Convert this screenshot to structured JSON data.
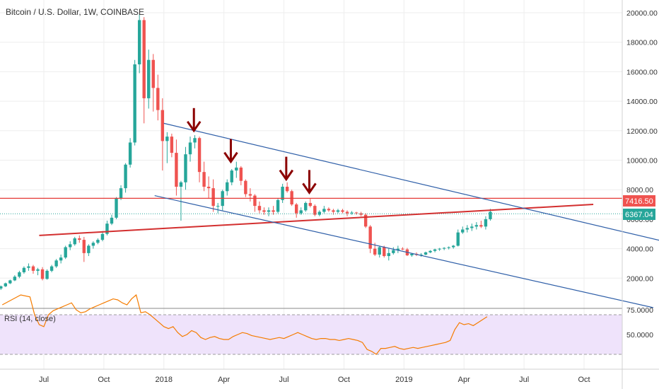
{
  "header": {
    "title": "Bitcoin / U.S. Dollar, 1W, COINBASE"
  },
  "colors": {
    "up": "#26a69a",
    "down": "#ef5350",
    "support_line": "#d32f2f",
    "resistance_line": "#e53935",
    "channel_line": "#2f5fa8",
    "arrow": "#8b0000",
    "rsi_line": "#f57c00",
    "rsi_band": "#efe3fb",
    "current_price_line": "#26a69a",
    "resistance_label_bg": "#ef5350",
    "current_label_bg": "#26a69a"
  },
  "price_axis": {
    "ticks": [
      "20000.00",
      "18000.00",
      "16000.00",
      "14000.00",
      "12000.00",
      "10000.00",
      "8000.00",
      "6000.00",
      "4000.00",
      "2000.00"
    ],
    "tick_values": [
      20000,
      18000,
      16000,
      14000,
      12000,
      10000,
      8000,
      6000,
      4000,
      2000
    ]
  },
  "labels": {
    "resistance": "7416.50",
    "current": "6367.04"
  },
  "time_axis": {
    "labels": [
      "Jul",
      "Oct",
      "2018",
      "Apr",
      "Jul",
      "Oct",
      "2019",
      "Apr",
      "Jul",
      "Oct"
    ],
    "weeks": [
      0,
      13,
      26,
      39,
      52,
      65,
      78,
      91,
      104,
      117
    ]
  },
  "rsi": {
    "title": "RSI (14, close)",
    "ticks": [
      "75.0000",
      "50.0000"
    ],
    "tick_values": [
      75,
      50
    ]
  },
  "chart_data": [
    {
      "type": "candlestick",
      "title": "Bitcoin / U.S. Dollar, 1W, COINBASE",
      "ylim": [
        0,
        20900
      ],
      "x_unit": "weeks from Jul 2017",
      "candles": [
        [
          -9.3,
          1300,
          1500,
          1200,
          1450
        ],
        [
          -8.3,
          1450,
          1700,
          1400,
          1650
        ],
        [
          -7.3,
          1650,
          1900,
          1600,
          1850
        ],
        [
          -6.3,
          1850,
          2200,
          1800,
          2100
        ],
        [
          -5.3,
          2100,
          2500,
          2000,
          2400
        ],
        [
          -4.3,
          2400,
          2800,
          2300,
          2700
        ],
        [
          -3.3,
          2700,
          3000,
          2500,
          2800
        ],
        [
          -2.3,
          2800,
          2900,
          2300,
          2500
        ],
        [
          -1.3,
          2500,
          2700,
          2200,
          2600
        ],
        [
          -0.3,
          2600,
          2750,
          1850,
          1950
        ],
        [
          0.7,
          1950,
          2600,
          1900,
          2500
        ],
        [
          1.7,
          2500,
          2900,
          2400,
          2800
        ],
        [
          2.7,
          2800,
          3300,
          2700,
          3200
        ],
        [
          3.7,
          3200,
          3600,
          3000,
          3400
        ],
        [
          4.7,
          3400,
          4200,
          3300,
          4100
        ],
        [
          5.7,
          4100,
          4500,
          3900,
          4300
        ],
        [
          6.7,
          4300,
          4800,
          4200,
          4700
        ],
        [
          7.7,
          4700,
          4900,
          4400,
          4600
        ],
        [
          8.7,
          4600,
          4800,
          3100,
          3700
        ],
        [
          9.7,
          3700,
          4300,
          3500,
          4200
        ],
        [
          10.7,
          4200,
          4500,
          4000,
          4400
        ],
        [
          11.7,
          4400,
          4700,
          4300,
          4600
        ],
        [
          12.7,
          4600,
          5200,
          4500,
          5000
        ],
        [
          13.7,
          5000,
          5900,
          4900,
          5700
        ],
        [
          14.7,
          5700,
          6300,
          5600,
          6100
        ],
        [
          15.7,
          6100,
          7500,
          6000,
          7400
        ],
        [
          16.7,
          7400,
          8300,
          7300,
          8100
        ],
        [
          17.7,
          8100,
          9800,
          7800,
          9700
        ],
        [
          18.7,
          9700,
          11500,
          9500,
          11200
        ],
        [
          19.7,
          11200,
          16800,
          11000,
          16500
        ],
        [
          20.7,
          16500,
          19900,
          15900,
          19500
        ],
        [
          21.7,
          19500,
          19700,
          12500,
          14200
        ],
        [
          22.7,
          14200,
          17500,
          13500,
          16800
        ],
        [
          23.7,
          16800,
          17200,
          13300,
          14900
        ],
        [
          24.7,
          14900,
          15800,
          12700,
          13400
        ],
        [
          25.7,
          13400,
          14200,
          9300,
          11300
        ],
        [
          26.7,
          11300,
          11900,
          9800,
          11600
        ],
        [
          27.7,
          11600,
          11800,
          10200,
          10500
        ],
        [
          28.7,
          10500,
          11400,
          7600,
          8200
        ],
        [
          29.7,
          8200,
          8600,
          5900,
          8500
        ],
        [
          30.7,
          8500,
          10900,
          8000,
          10400
        ],
        [
          31.7,
          10400,
          11600,
          9900,
          11200
        ],
        [
          32.7,
          11200,
          11700,
          10800,
          11500
        ],
        [
          33.7,
          11500,
          11600,
          8500,
          9200
        ],
        [
          34.7,
          9200,
          9900,
          7900,
          8200
        ],
        [
          35.7,
          8200,
          8900,
          7400,
          8100
        ],
        [
          36.7,
          8100,
          8700,
          6500,
          6900
        ],
        [
          37.7,
          6900,
          7100,
          6400,
          6900
        ],
        [
          38.7,
          6900,
          8000,
          6600,
          7900
        ],
        [
          39.7,
          7900,
          8700,
          7600,
          8500
        ],
        [
          40.7,
          8500,
          9400,
          8300,
          9300
        ],
        [
          41.7,
          9300,
          9900,
          8800,
          9500
        ],
        [
          42.7,
          9500,
          9600,
          8300,
          8600
        ],
        [
          43.7,
          8600,
          8700,
          7500,
          7700
        ],
        [
          44.7,
          7700,
          8100,
          7200,
          7600
        ],
        [
          45.7,
          7600,
          7700,
          6500,
          6900
        ],
        [
          46.7,
          6900,
          7200,
          6400,
          6600
        ],
        [
          47.7,
          6600,
          6800,
          6300,
          6500
        ],
        [
          48.7,
          6500,
          6800,
          6200,
          6600
        ],
        [
          49.7,
          6600,
          6900,
          6300,
          6500
        ],
        [
          50.7,
          6500,
          7400,
          6400,
          7300
        ],
        [
          51.7,
          7300,
          8400,
          7100,
          8200
        ],
        [
          52.7,
          8200,
          8500,
          7800,
          7900
        ],
        [
          53.7,
          7900,
          8000,
          6900,
          7000
        ],
        [
          54.7,
          7000,
          7100,
          6100,
          6400
        ],
        [
          55.7,
          6400,
          6800,
          6300,
          6600
        ],
        [
          56.7,
          6600,
          7200,
          6500,
          7100
        ],
        [
          57.7,
          7100,
          7400,
          6800,
          6900
        ],
        [
          58.7,
          6900,
          7000,
          6200,
          6300
        ],
        [
          59.7,
          6300,
          6600,
          6200,
          6500
        ],
        [
          60.7,
          6500,
          6900,
          6400,
          6700
        ],
        [
          61.7,
          6700,
          6800,
          6500,
          6600
        ],
        [
          62.7,
          6600,
          6700,
          6300,
          6500
        ],
        [
          63.7,
          6500,
          6700,
          6400,
          6600
        ],
        [
          64.7,
          6600,
          6700,
          6400,
          6500
        ],
        [
          65.7,
          6500,
          6600,
          6200,
          6400
        ],
        [
          66.7,
          6400,
          6550,
          6300,
          6450
        ],
        [
          67.7,
          6450,
          6500,
          6300,
          6400
        ],
        [
          68.7,
          6400,
          6500,
          6200,
          6300
        ],
        [
          69.7,
          6300,
          6400,
          5400,
          5500
        ],
        [
          70.7,
          5500,
          5600,
          3700,
          4000
        ],
        [
          71.7,
          4000,
          4400,
          3500,
          3600
        ],
        [
          72.7,
          3600,
          4200,
          3400,
          4100
        ],
        [
          73.7,
          4100,
          4200,
          3400,
          3500
        ],
        [
          74.7,
          3500,
          4000,
          3200,
          3700
        ],
        [
          75.7,
          3700,
          4100,
          3600,
          3900
        ],
        [
          76.7,
          3900,
          4200,
          3700,
          4000
        ],
        [
          77.7,
          4000,
          4100,
          3900,
          3950
        ],
        [
          78.7,
          3950,
          4050,
          3500,
          3550
        ],
        [
          79.7,
          3550,
          3700,
          3450,
          3650
        ],
        [
          80.7,
          3650,
          3750,
          3500,
          3580
        ],
        [
          81.7,
          3580,
          3700,
          3450,
          3600
        ],
        [
          82.7,
          3600,
          3800,
          3550,
          3750
        ],
        [
          83.7,
          3750,
          3900,
          3700,
          3850
        ],
        [
          84.7,
          3850,
          4000,
          3750,
          3950
        ],
        [
          85.7,
          3950,
          4050,
          3850,
          4000
        ],
        [
          86.7,
          4000,
          4100,
          3900,
          4050
        ],
        [
          87.7,
          4050,
          4150,
          3950,
          4100
        ],
        [
          88.7,
          4100,
          4250,
          4000,
          4200
        ],
        [
          89.7,
          4200,
          5300,
          4150,
          5100
        ],
        [
          90.7,
          5100,
          5500,
          5000,
          5300
        ],
        [
          91.7,
          5300,
          5600,
          5100,
          5400
        ],
        [
          92.7,
          5400,
          5700,
          5200,
          5500
        ],
        [
          93.7,
          5500,
          5800,
          5300,
          5600
        ],
        [
          94.7,
          5600,
          5900,
          5400,
          5500
        ],
        [
          95.7,
          5500,
          6200,
          5300,
          6000
        ],
        [
          96.7,
          6000,
          6700,
          5900,
          6500
        ]
      ],
      "lines": {
        "resistance": {
          "value": 7416.5
        },
        "current": {
          "value": 6367.04
        },
        "support_trend": {
          "points": [
            [
              -1,
              4900
            ],
            [
              119,
              7000
            ]
          ]
        },
        "channel_upper": {
          "points": [
            [
              26,
              12500
            ],
            [
              141,
              4000
            ]
          ]
        },
        "channel_lower": {
          "points": [
            [
              24,
              7600
            ],
            [
              132,
              0
            ]
          ]
        }
      },
      "arrows_at": [
        [
          32.5,
          12000
        ],
        [
          40.5,
          9900
        ],
        [
          52.5,
          8700
        ],
        [
          57.5,
          7800
        ]
      ]
    },
    {
      "type": "line",
      "title": "RSI (14, close)",
      "ylim": [
        25,
        95
      ],
      "bands": [
        [
          30,
          70
        ]
      ],
      "x": [
        -9,
        -7,
        -5,
        -3,
        -2,
        -1,
        0,
        1,
        2,
        3,
        4,
        5,
        6,
        7,
        8,
        9,
        10,
        11,
        12,
        13,
        14,
        15,
        16,
        17,
        18,
        19,
        20,
        21,
        22,
        23,
        24,
        25,
        26,
        27,
        28,
        29,
        30,
        31,
        32,
        33,
        34,
        35,
        36,
        37,
        38,
        39,
        40,
        41,
        42,
        43,
        44,
        45,
        46,
        47,
        48,
        49,
        50,
        51,
        52,
        53,
        54,
        55,
        56,
        57,
        58,
        59,
        60,
        61,
        62,
        63,
        64,
        65,
        66,
        67,
        68,
        69,
        70,
        71,
        72,
        73,
        74,
        75,
        76,
        77,
        78,
        79,
        80,
        81,
        82,
        83,
        84,
        85,
        86,
        87,
        88,
        89,
        90,
        91,
        92,
        93,
        94,
        95,
        96
      ],
      "y": [
        80,
        85,
        90,
        88,
        70,
        60,
        58,
        70,
        74,
        76,
        78,
        80,
        82,
        75,
        72,
        73,
        76,
        78,
        80,
        82,
        84,
        86,
        85,
        82,
        80,
        86,
        90,
        72,
        73,
        70,
        66,
        62,
        58,
        56,
        58,
        52,
        48,
        50,
        54,
        52,
        47,
        45,
        47,
        48,
        46,
        45,
        45,
        48,
        50,
        52,
        51,
        49,
        48,
        47,
        46,
        45,
        46,
        47,
        46,
        48,
        50,
        52,
        50,
        48,
        46,
        45,
        46,
        46,
        45,
        45,
        44,
        45,
        46,
        45,
        44,
        42,
        35,
        33,
        30,
        36,
        36,
        37,
        38,
        36,
        35,
        36,
        37,
        36,
        37,
        38,
        39,
        40,
        41,
        42,
        44,
        55,
        62,
        60,
        61,
        59,
        62,
        65,
        68
      ]
    }
  ]
}
